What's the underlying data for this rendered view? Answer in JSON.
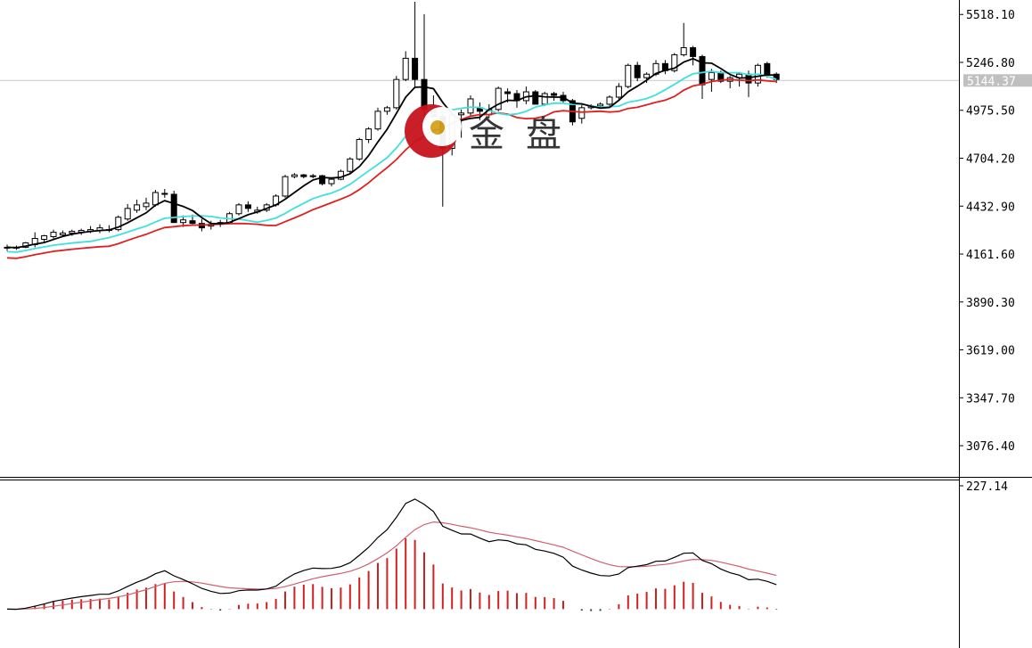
{
  "chart_data": [
    {
      "type": "candlestick",
      "title": "",
      "ylim": [
        2900,
        5600
      ],
      "y_ticks": [
        "5518.10",
        "5246.80",
        "4975.50",
        "4704.20",
        "4432.90",
        "4161.60",
        "3890.30",
        "3619.00",
        "3347.70",
        "3076.40"
      ],
      "current_price": "5144.37",
      "grid": false,
      "colors": {
        "up_body": "#ffffff",
        "down_body": "#000000",
        "ma_fast": "#000000",
        "ma_mid": "#40e0e0",
        "ma_slow": "#e02020",
        "price_line": "#c8c8c8",
        "price_tag": "#c0c0c0"
      },
      "candles": [
        [
          4195,
          4215,
          4180,
          4200
        ],
        [
          4200,
          4210,
          4185,
          4195
        ],
        [
          4200,
          4230,
          4195,
          4225
        ],
        [
          4215,
          4285,
          4200,
          4250
        ],
        [
          4245,
          4270,
          4230,
          4265
        ],
        [
          4260,
          4300,
          4245,
          4285
        ],
        [
          4270,
          4295,
          4260,
          4280
        ],
        [
          4280,
          4300,
          4265,
          4290
        ],
        [
          4285,
          4305,
          4270,
          4295
        ],
        [
          4290,
          4320,
          4280,
          4300
        ],
        [
          4295,
          4330,
          4280,
          4310
        ],
        [
          4300,
          4325,
          4285,
          4295
        ],
        [
          4300,
          4380,
          4290,
          4370
        ],
        [
          4360,
          4445,
          4350,
          4420
        ],
        [
          4410,
          4470,
          4395,
          4440
        ],
        [
          4430,
          4480,
          4410,
          4450
        ],
        [
          4440,
          4525,
          4430,
          4510
        ],
        [
          4505,
          4530,
          4480,
          4500
        ],
        [
          4500,
          4520,
          4340,
          4340
        ],
        [
          4340,
          4380,
          4315,
          4355
        ],
        [
          4350,
          4385,
          4330,
          4335
        ],
        [
          4335,
          4360,
          4290,
          4310
        ],
        [
          4320,
          4350,
          4300,
          4330
        ],
        [
          4330,
          4355,
          4315,
          4340
        ],
        [
          4340,
          4400,
          4330,
          4390
        ],
        [
          4390,
          4450,
          4380,
          4440
        ],
        [
          4440,
          4460,
          4400,
          4420
        ],
        [
          4400,
          4430,
          4390,
          4410
        ],
        [
          4410,
          4450,
          4400,
          4440
        ],
        [
          4440,
          4500,
          4430,
          4490
        ],
        [
          4490,
          4610,
          4480,
          4600
        ],
        [
          4600,
          4620,
          4590,
          4610
        ],
        [
          4610,
          4615,
          4590,
          4600
        ],
        [
          4600,
          4615,
          4590,
          4605
        ],
        [
          4605,
          4610,
          4550,
          4560
        ],
        [
          4560,
          4595,
          4545,
          4585
        ],
        [
          4585,
          4640,
          4580,
          4630
        ],
        [
          4630,
          4710,
          4620,
          4700
        ],
        [
          4700,
          4820,
          4690,
          4810
        ],
        [
          4810,
          4880,
          4790,
          4870
        ],
        [
          4870,
          4990,
          4860,
          4970
        ],
        [
          4970,
          5000,
          4950,
          4990
        ],
        [
          4990,
          5170,
          4980,
          5150
        ],
        [
          5150,
          5310,
          5140,
          5270
        ],
        [
          5270,
          5590,
          5100,
          5150
        ],
        [
          5150,
          5520,
          4940,
          4980
        ],
        [
          4980,
          5060,
          4920,
          4940
        ],
        [
          4940,
          4960,
          4430,
          4760
        ],
        [
          4760,
          4960,
          4720,
          4950
        ],
        [
          4950,
          4980,
          4820,
          4960
        ],
        [
          4960,
          5060,
          4940,
          5040
        ],
        [
          4990,
          5020,
          4920,
          4970
        ],
        [
          4950,
          5010,
          4930,
          4980
        ],
        [
          4980,
          5110,
          4970,
          5100
        ],
        [
          5080,
          5100,
          5020,
          5070
        ],
        [
          5070,
          5090,
          4990,
          5030
        ],
        [
          5030,
          5110,
          5010,
          5080
        ],
        [
          5080,
          5090,
          5010,
          5010
        ],
        [
          5010,
          5080,
          5000,
          5070
        ],
        [
          5070,
          5080,
          5030,
          5060
        ],
        [
          5060,
          5080,
          5020,
          5030
        ],
        [
          5030,
          5040,
          4890,
          4910
        ],
        [
          4930,
          5010,
          4900,
          4990
        ],
        [
          4990,
          5010,
          4980,
          5000
        ],
        [
          5000,
          5020,
          4990,
          5010
        ],
        [
          5010,
          5060,
          4990,
          5050
        ],
        [
          5050,
          5130,
          5030,
          5110
        ],
        [
          5110,
          5240,
          5100,
          5230
        ],
        [
          5230,
          5250,
          5140,
          5160
        ],
        [
          5160,
          5190,
          5130,
          5180
        ],
        [
          5180,
          5260,
          5170,
          5240
        ],
        [
          5240,
          5260,
          5180,
          5200
        ],
        [
          5200,
          5300,
          5190,
          5290
        ],
        [
          5290,
          5470,
          5280,
          5330
        ],
        [
          5330,
          5340,
          5230,
          5280
        ],
        [
          5280,
          5290,
          5040,
          5120
        ],
        [
          5150,
          5210,
          5080,
          5190
        ],
        [
          5190,
          5200,
          5130,
          5140
        ],
        [
          5140,
          5170,
          5100,
          5160
        ],
        [
          5160,
          5190,
          5110,
          5180
        ],
        [
          5180,
          5200,
          5050,
          5130
        ],
        [
          5130,
          5240,
          5110,
          5230
        ],
        [
          5240,
          5250,
          5160,
          5180
        ],
        [
          5180,
          5190,
          5130,
          5150
        ]
      ]
    },
    {
      "type": "macd",
      "title": "",
      "ylim": [
        -70,
        230
      ],
      "y_ticks": [
        "227.14"
      ],
      "colors": {
        "macd": "#000000",
        "signal": "#d06070",
        "hist_pos": "#d02020",
        "hist_neg": "#2f4f4f"
      }
    }
  ]
}
